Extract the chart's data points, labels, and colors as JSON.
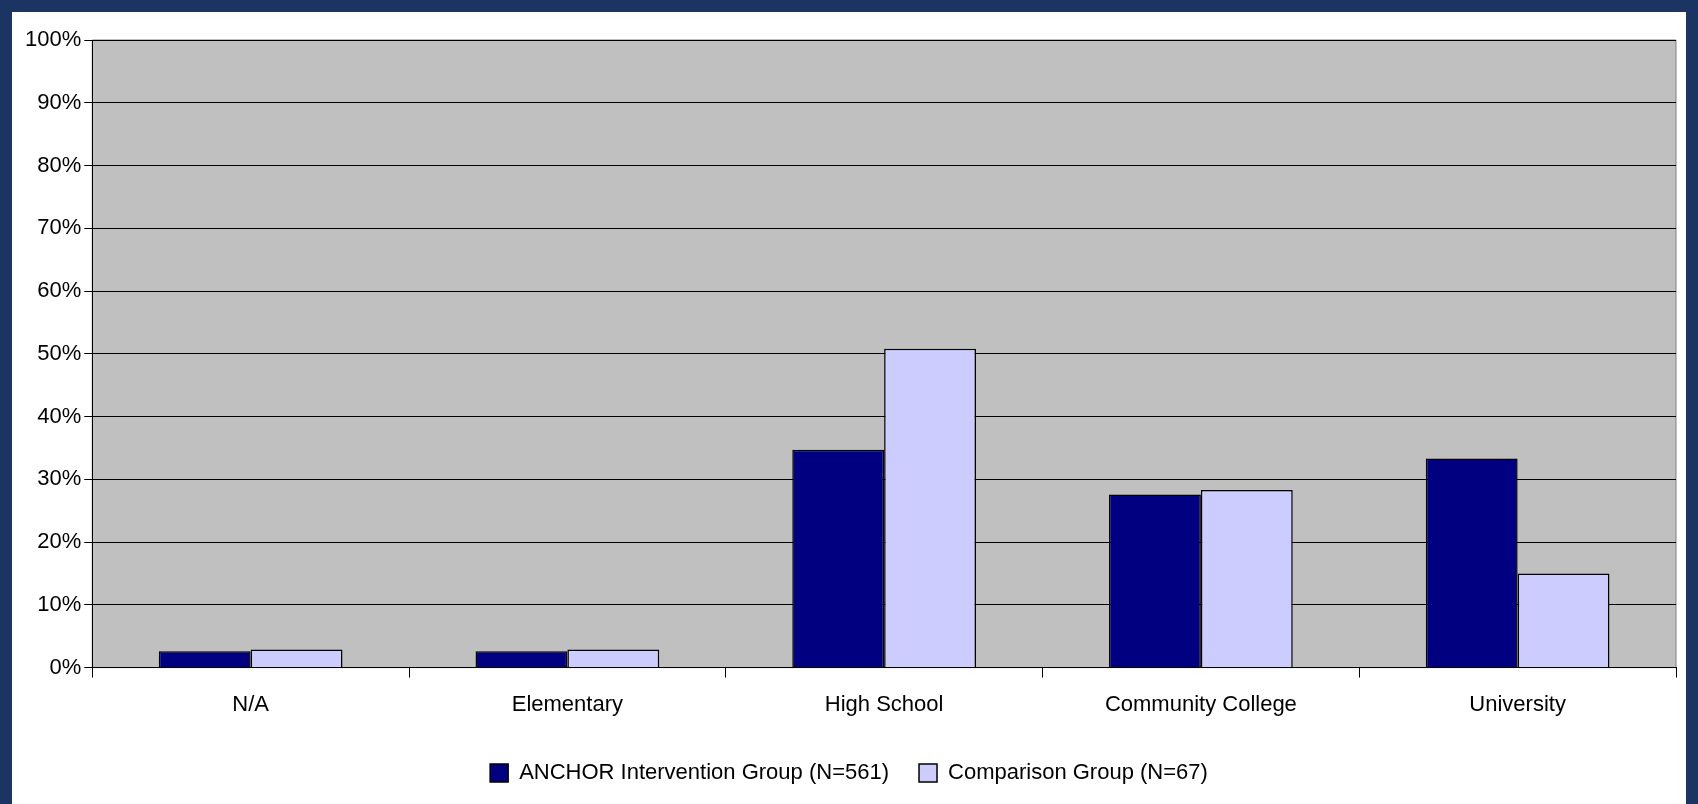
{
  "chart_data": {
    "type": "bar",
    "categories": [
      "N/A",
      "Elementary",
      "High School",
      "Community College",
      "University"
    ],
    "series": [
      {
        "name": "ANCHOR Intervention Group (N=561)",
        "color": "#000080",
        "values": [
          2.6,
          2.6,
          34.7,
          27.6,
          33.3
        ]
      },
      {
        "name": "Comparison Group (N=67)",
        "color": "#ccccff",
        "values": [
          2.9,
          2.9,
          50.8,
          28.3,
          15.0
        ]
      }
    ],
    "ylim": [
      0,
      100
    ],
    "yticks": [
      {
        "value": 0,
        "label": "0%"
      },
      {
        "value": 10,
        "label": "10%"
      },
      {
        "value": 20,
        "label": "20%"
      },
      {
        "value": 30,
        "label": "30%"
      },
      {
        "value": 40,
        "label": "40%"
      },
      {
        "value": 50,
        "label": "50%"
      },
      {
        "value": 60,
        "label": "60%"
      },
      {
        "value": 70,
        "label": "70%"
      },
      {
        "value": 80,
        "label": "80%"
      },
      {
        "value": 90,
        "label": "90%"
      },
      {
        "value": 100,
        "label": "100%"
      }
    ],
    "grid": "y",
    "legend": "bottom"
  }
}
